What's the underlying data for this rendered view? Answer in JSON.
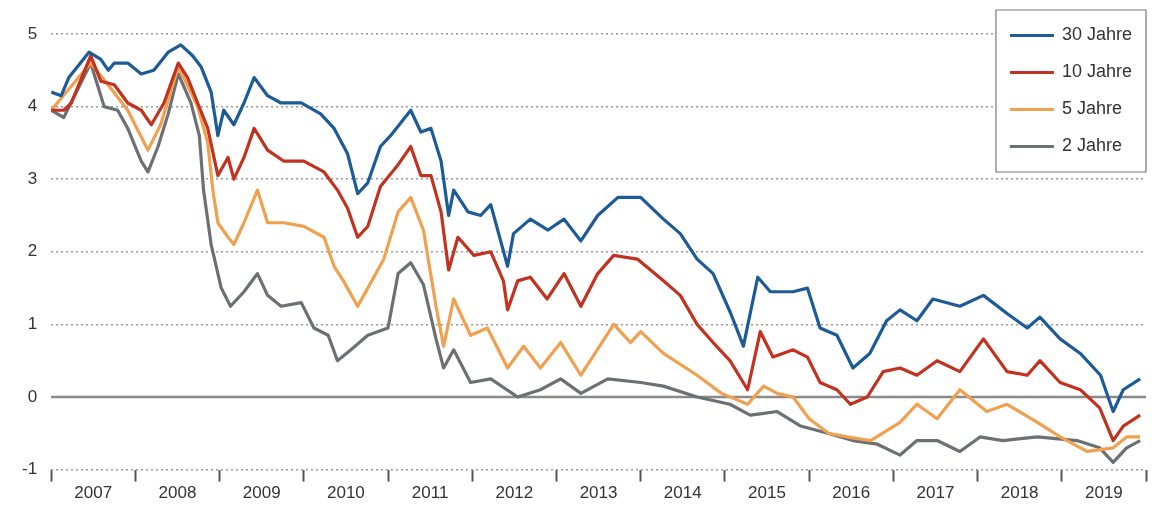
{
  "chart_data": {
    "type": "line",
    "xlim": [
      2007,
      2020
    ],
    "ylim": [
      -1,
      5
    ],
    "xticks": [
      {
        "value": 2007,
        "label": null
      },
      {
        "value": 2007.5,
        "label": "2007"
      },
      {
        "value": 2008,
        "label": null
      },
      {
        "value": 2008.5,
        "label": "2008"
      },
      {
        "value": 2009,
        "label": null
      },
      {
        "value": 2009.5,
        "label": "2009"
      },
      {
        "value": 2010,
        "label": null
      },
      {
        "value": 2010.5,
        "label": "2010"
      },
      {
        "value": 2011,
        "label": null
      },
      {
        "value": 2011.5,
        "label": "2011"
      },
      {
        "value": 2012,
        "label": null
      },
      {
        "value": 2012.5,
        "label": "2012"
      },
      {
        "value": 2013,
        "label": null
      },
      {
        "value": 2013.5,
        "label": "2013"
      },
      {
        "value": 2014,
        "label": null
      },
      {
        "value": 2014.5,
        "label": "2014"
      },
      {
        "value": 2015,
        "label": null
      },
      {
        "value": 2015.5,
        "label": "2015"
      },
      {
        "value": 2016,
        "label": null
      },
      {
        "value": 2016.5,
        "label": "2016"
      },
      {
        "value": 2017,
        "label": null
      },
      {
        "value": 2017.5,
        "label": "2017"
      },
      {
        "value": 2018,
        "label": null
      },
      {
        "value": 2018.5,
        "label": "2018"
      },
      {
        "value": 2019,
        "label": null
      },
      {
        "value": 2019.5,
        "label": "2019"
      },
      {
        "value": 2020,
        "label": null
      }
    ],
    "yticks": [
      -1,
      0,
      1,
      2,
      3,
      4,
      5
    ],
    "grid": "y",
    "legend": "top right",
    "marker": "none",
    "ref_lines": [
      {
        "axis": "y",
        "value": 0,
        "color": "#8a8a8a",
        "line_style": "solid"
      }
    ],
    "series": [
      {
        "name": "30 Jahre",
        "color": "#1d5a98",
        "x": [
          2007,
          2007.12,
          2007.21,
          2007.45,
          2007.59,
          2007.68,
          2007.75,
          2007.91,
          2008.07,
          2008.22,
          2008.39,
          2008.54,
          2008.68,
          2008.78,
          2008.9,
          2008.98,
          2009.05,
          2009.17,
          2009.29,
          2009.41,
          2009.57,
          2009.73,
          2009.97,
          2010.2,
          2010.36,
          2010.52,
          2010.64,
          2010.76,
          2010.91,
          2011.03,
          2011.27,
          2011.39,
          2011.51,
          2011.63,
          2011.72,
          2011.78,
          2011.95,
          2012.1,
          2012.22,
          2012.42,
          2012.49,
          2012.69,
          2012.9,
          2013.09,
          2013.29,
          2013.49,
          2013.73,
          2014,
          2014.27,
          2014.47,
          2014.67,
          2014.86,
          2015.07,
          2015.22,
          2015.39,
          2015.54,
          2015.81,
          2015.98,
          2016.13,
          2016.33,
          2016.52,
          2016.72,
          2016.92,
          2017.08,
          2017.28,
          2017.47,
          2017.79,
          2018.07,
          2018.35,
          2018.59,
          2018.74,
          2018.98,
          2019.22,
          2019.46,
          2019.61,
          2019.73,
          2019.93
        ],
        "values": [
          4.2,
          4.15,
          4.4,
          4.75,
          4.65,
          4.5,
          4.6,
          4.6,
          4.45,
          4.5,
          4.75,
          4.85,
          4.7,
          4.55,
          4.2,
          3.6,
          3.95,
          3.75,
          4.05,
          4.4,
          4.15,
          4.05,
          4.05,
          3.9,
          3.7,
          3.35,
          2.8,
          2.95,
          3.45,
          3.6,
          3.95,
          3.65,
          3.7,
          3.25,
          2.5,
          2.85,
          2.55,
          2.5,
          2.65,
          1.8,
          2.25,
          2.45,
          2.3,
          2.45,
          2.15,
          2.5,
          2.75,
          2.75,
          2.45,
          2.25,
          1.9,
          1.7,
          1.15,
          0.7,
          1.65,
          1.45,
          1.45,
          1.5,
          0.95,
          0.85,
          0.4,
          0.6,
          1.05,
          1.2,
          1.05,
          1.35,
          1.25,
          1.4,
          1.15,
          0.95,
          1.1,
          0.8,
          0.6,
          0.3,
          -0.2,
          0.1,
          0.25
        ]
      },
      {
        "name": "10 Jahre",
        "color": "#c3311f",
        "x": [
          2007,
          2007.15,
          2007.24,
          2007.47,
          2007.59,
          2007.75,
          2007.91,
          2008.07,
          2008.19,
          2008.34,
          2008.51,
          2008.62,
          2008.74,
          2008.86,
          2008.98,
          2009.1,
          2009.17,
          2009.29,
          2009.41,
          2009.57,
          2009.76,
          2010,
          2010.24,
          2010.4,
          2010.52,
          2010.64,
          2010.76,
          2010.91,
          2011.12,
          2011.27,
          2011.39,
          2011.51,
          2011.63,
          2011.72,
          2011.83,
          2012.02,
          2012.22,
          2012.37,
          2012.42,
          2012.54,
          2012.69,
          2012.89,
          2013.09,
          2013.29,
          2013.49,
          2013.68,
          2013.96,
          2014.27,
          2014.47,
          2014.67,
          2014.86,
          2015.06,
          2015.27,
          2015.42,
          2015.57,
          2015.81,
          2015.98,
          2016.13,
          2016.33,
          2016.49,
          2016.69,
          2016.88,
          2017.08,
          2017.28,
          2017.52,
          2017.79,
          2018.07,
          2018.35,
          2018.59,
          2018.74,
          2018.98,
          2019.22,
          2019.45,
          2019.61,
          2019.73,
          2019.93
        ],
        "values": [
          3.95,
          3.95,
          4.05,
          4.7,
          4.35,
          4.3,
          4.05,
          3.95,
          3.75,
          4.05,
          4.6,
          4.4,
          4.05,
          3.7,
          3.05,
          3.3,
          3.0,
          3.3,
          3.7,
          3.4,
          3.25,
          3.25,
          3.1,
          2.85,
          2.6,
          2.2,
          2.35,
          2.9,
          3.2,
          3.45,
          3.05,
          3.05,
          2.55,
          1.75,
          2.2,
          1.95,
          2.0,
          1.6,
          1.2,
          1.6,
          1.65,
          1.35,
          1.7,
          1.25,
          1.7,
          1.95,
          1.9,
          1.6,
          1.4,
          1.0,
          0.75,
          0.5,
          0.1,
          0.9,
          0.55,
          0.65,
          0.55,
          0.2,
          0.1,
          -0.1,
          0.0,
          0.35,
          0.4,
          0.3,
          0.5,
          0.35,
          0.8,
          0.35,
          0.3,
          0.5,
          0.2,
          0.1,
          -0.15,
          -0.6,
          -0.4,
          -0.25
        ]
      },
      {
        "name": "5 Jahre",
        "color": "#f0a04f",
        "x": [
          2007,
          2007.47,
          2007.71,
          2007.91,
          2008.15,
          2008.3,
          2008.51,
          2008.74,
          2008.86,
          2008.92,
          2008.98,
          2009.1,
          2009.17,
          2009.29,
          2009.45,
          2009.57,
          2009.76,
          2010,
          2010.24,
          2010.36,
          2010.47,
          2010.64,
          2010.76,
          2010.95,
          2011.12,
          2011.27,
          2011.42,
          2011.57,
          2011.66,
          2011.78,
          2011.98,
          2012.18,
          2012.42,
          2012.61,
          2012.81,
          2013.05,
          2013.29,
          2013.68,
          2013.88,
          2014,
          2014.27,
          2014.67,
          2014.96,
          2015.27,
          2015.46,
          2015.62,
          2015.81,
          2016.0,
          2016.23,
          2016.45,
          2016.73,
          2017.08,
          2017.28,
          2017.52,
          2017.79,
          2018.11,
          2018.35,
          2018.71,
          2018.98,
          2019.3,
          2019.61,
          2019.77,
          2019.93
        ],
        "values": [
          3.95,
          4.6,
          4.25,
          3.95,
          3.4,
          3.75,
          4.55,
          4.0,
          3.5,
          2.85,
          2.4,
          2.2,
          2.1,
          2.4,
          2.85,
          2.4,
          2.4,
          2.35,
          2.2,
          1.8,
          1.6,
          1.25,
          1.5,
          1.9,
          2.55,
          2.75,
          2.3,
          1.25,
          0.7,
          1.35,
          0.85,
          0.95,
          0.4,
          0.7,
          0.4,
          0.75,
          0.3,
          1.0,
          0.75,
          0.9,
          0.6,
          0.3,
          0.05,
          -0.1,
          0.15,
          0.05,
          0.0,
          -0.3,
          -0.5,
          -0.55,
          -0.6,
          -0.35,
          -0.1,
          -0.3,
          0.1,
          -0.2,
          -0.1,
          -0.35,
          -0.55,
          -0.75,
          -0.7,
          -0.55,
          -0.55
        ]
      },
      {
        "name": "2 Jahre",
        "color": "#6c7075",
        "x": [
          2007,
          2007.15,
          2007.47,
          2007.63,
          2007.79,
          2007.91,
          2008.07,
          2008.15,
          2008.27,
          2008.39,
          2008.51,
          2008.66,
          2008.76,
          2008.81,
          2008.9,
          2009.02,
          2009.13,
          2009.29,
          2009.45,
          2009.57,
          2009.73,
          2009.97,
          2010.12,
          2010.29,
          2010.4,
          2010.56,
          2010.76,
          2011,
          2011.12,
          2011.27,
          2011.42,
          2011.57,
          2011.66,
          2011.78,
          2011.98,
          2012.22,
          2012.54,
          2012.81,
          2013.05,
          2013.29,
          2013.61,
          2014,
          2014.27,
          2014.67,
          2015.06,
          2015.3,
          2015.62,
          2015.9,
          2016.22,
          2016.52,
          2016.81,
          2017.08,
          2017.28,
          2017.52,
          2017.79,
          2018.03,
          2018.3,
          2018.71,
          2019.18,
          2019.45,
          2019.61,
          2019.77,
          2019.93
        ],
        "values": [
          3.95,
          3.85,
          4.6,
          4.0,
          3.95,
          3.7,
          3.25,
          3.1,
          3.45,
          3.9,
          4.45,
          4.05,
          3.6,
          2.85,
          2.1,
          1.5,
          1.25,
          1.45,
          1.7,
          1.4,
          1.25,
          1.3,
          0.95,
          0.85,
          0.5,
          0.65,
          0.85,
          0.95,
          1.7,
          1.85,
          1.55,
          0.8,
          0.4,
          0.65,
          0.2,
          0.25,
          0.0,
          0.1,
          0.25,
          0.05,
          0.25,
          0.2,
          0.15,
          0.0,
          -0.1,
          -0.25,
          -0.2,
          -0.4,
          -0.5,
          -0.6,
          -0.65,
          -0.8,
          -0.6,
          -0.6,
          -0.75,
          -0.55,
          -0.6,
          -0.55,
          -0.6,
          -0.7,
          -0.9,
          -0.7,
          -0.6
        ]
      }
    ]
  }
}
